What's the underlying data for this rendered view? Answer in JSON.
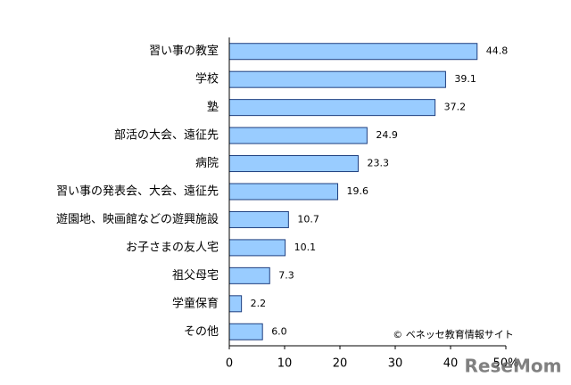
{
  "chart_data": {
    "type": "hbar",
    "categories": [
      "習い事の教室",
      "学校",
      "塾",
      "部活の大会、遠征先",
      "病院",
      "習い事の発表会、大会、遠征先",
      "遊園地、映画館などの遊興施設",
      "お子さまの友人宅",
      "祖父母宅",
      "学童保育",
      "その他"
    ],
    "values": [
      44.8,
      39.1,
      37.2,
      24.9,
      23.3,
      19.6,
      10.7,
      10.1,
      7.3,
      2.2,
      6.0
    ],
    "value_labels": [
      "44.8",
      "39.1",
      "37.2",
      "24.9",
      "23.3",
      "19.6",
      "10.7",
      "10.1",
      "7.3",
      "2.2",
      "6.0"
    ],
    "color": "#99ccff",
    "edge_color": "#1f3f7f",
    "xlim": [
      0,
      50
    ],
    "xticks": [
      0,
      10,
      20,
      30,
      40,
      {
        "value": 50,
        "label": "50%"
      }
    ],
    "annotations": [
      "© ベネッセ教育情報サイト",
      "ReseMom"
    ]
  }
}
